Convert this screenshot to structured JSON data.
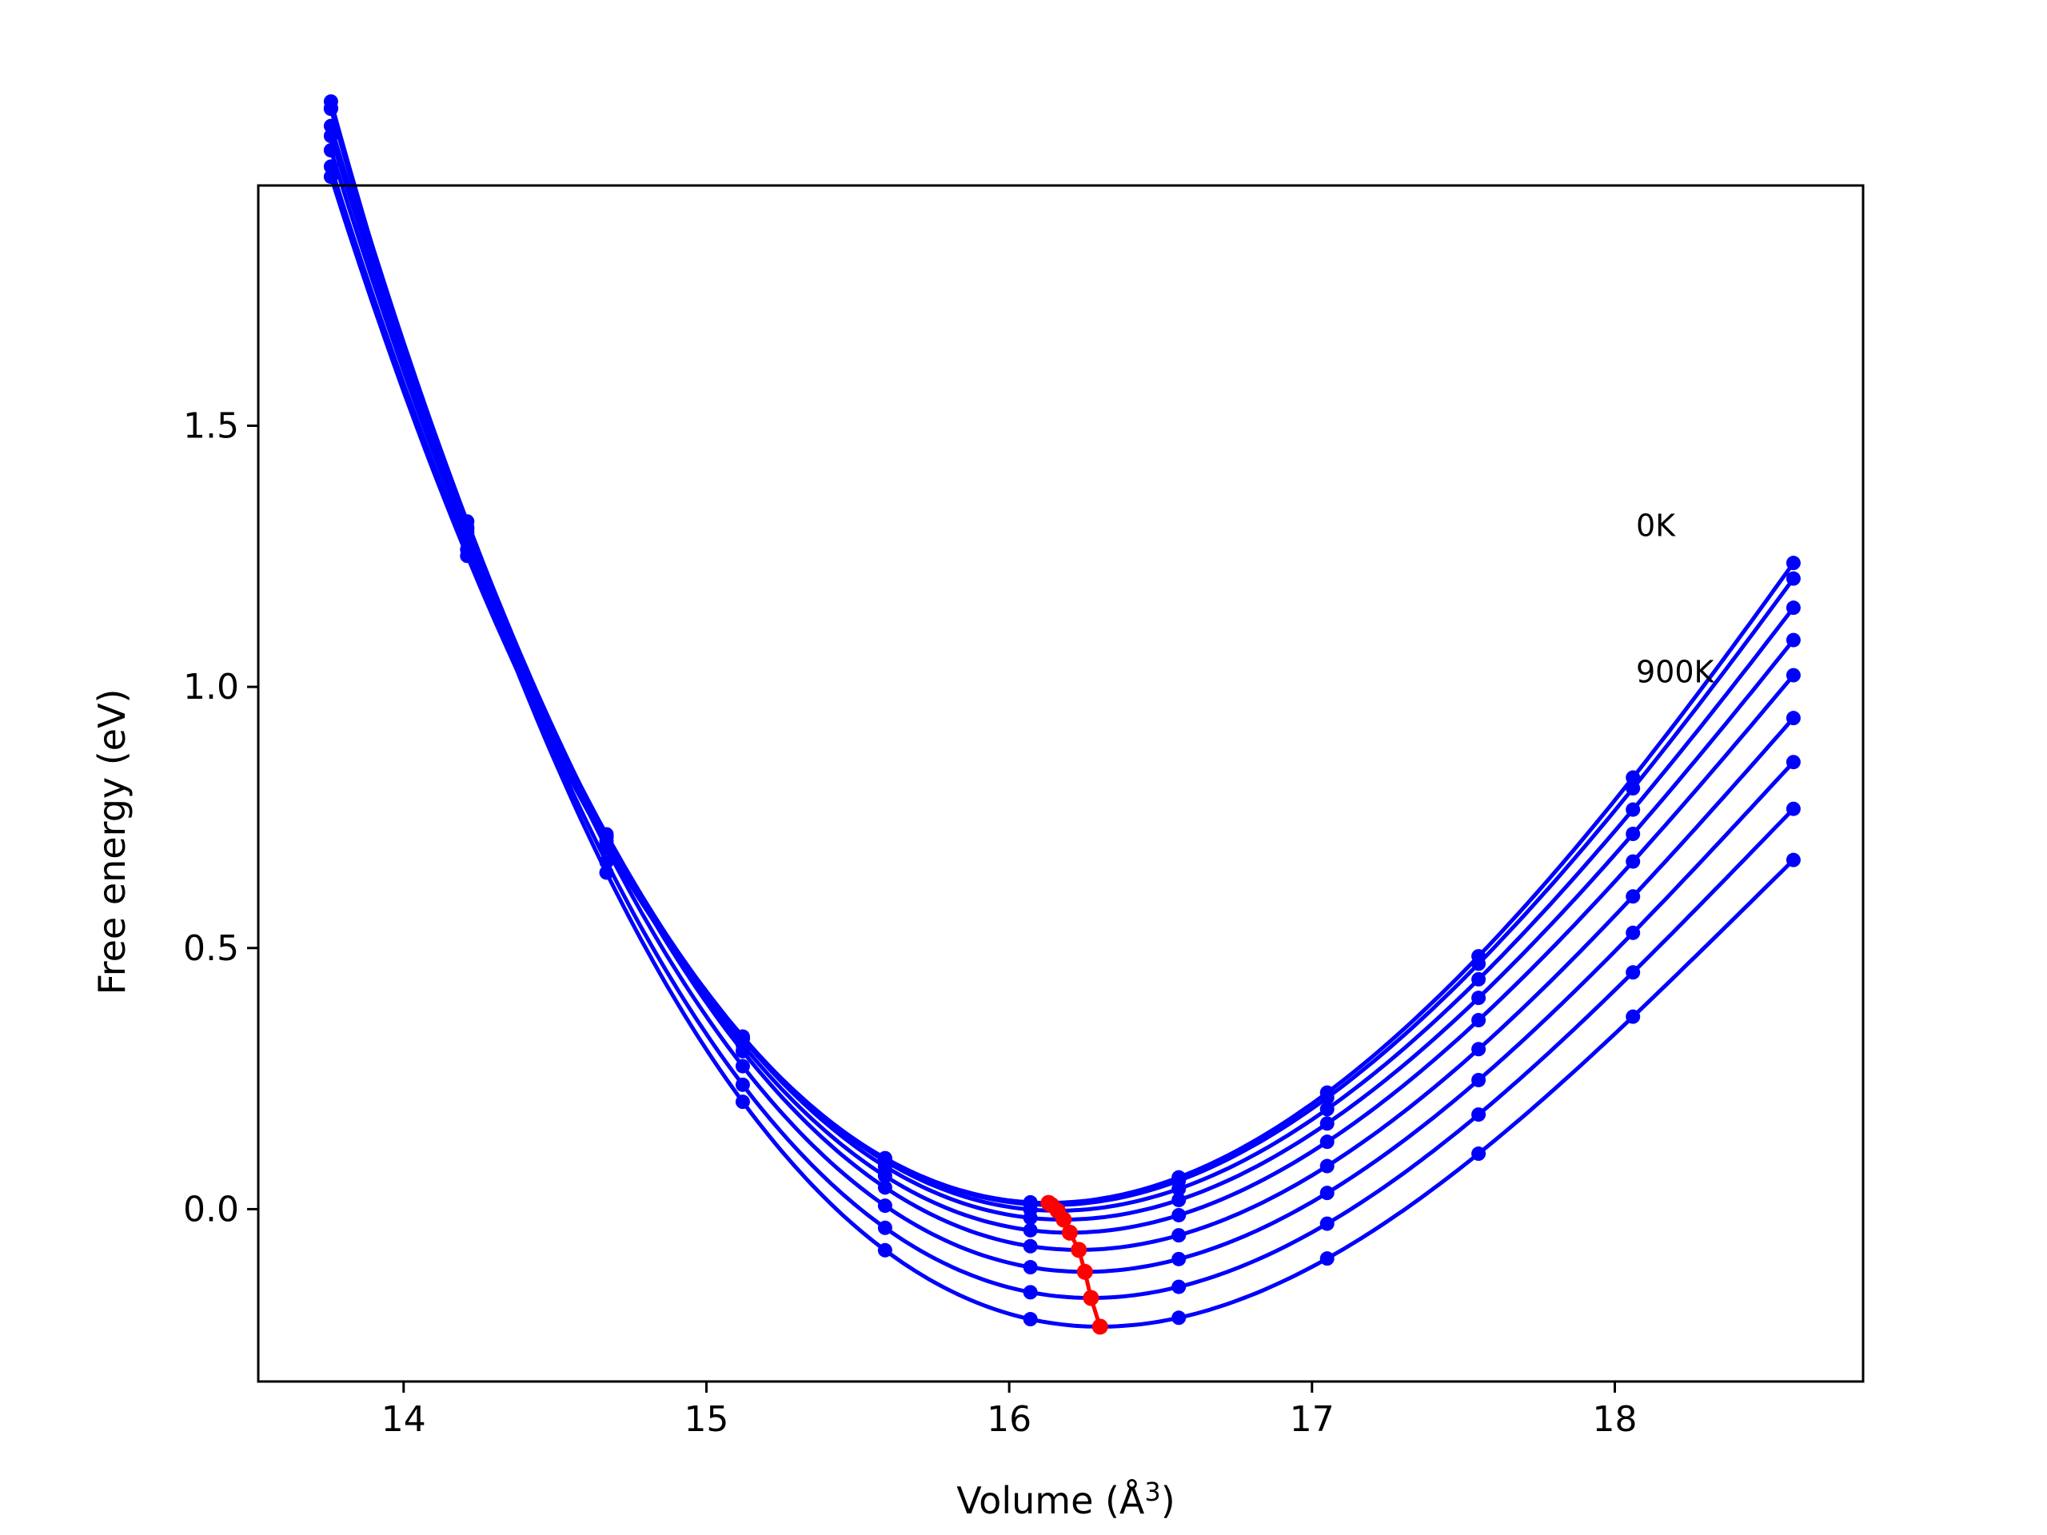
{
  "chart_data": {
    "type": "scatter",
    "title": "",
    "xlabel": "Volume (Å",
    "xlabel_sup": "3",
    "xlabel_close": ")",
    "ylabel": "Free energy (eV)",
    "xlim": [
      13.52,
      18.82
    ],
    "ylim": [
      -0.33,
      1.96
    ],
    "xticks": [
      14,
      15,
      16,
      17,
      18
    ],
    "xtick_labels": [
      "14",
      "15",
      "16",
      "17",
      "18"
    ],
    "yticks": [
      0.0,
      0.5,
      1.0,
      1.5
    ],
    "ytick_labels": [
      "0.0",
      "0.5",
      "1.0",
      "1.5"
    ],
    "grid": false,
    "legend": "none",
    "curve_color": "#0000ff",
    "min_color": "#ff0000",
    "annotations": [
      {
        "text": "0K",
        "x": 18.07,
        "y": 1.31
      },
      {
        "text": "900K",
        "x": 18.07,
        "y": 1.03
      }
    ],
    "volumes": [
      13.76,
      14.21,
      14.67,
      15.12,
      15.59,
      16.07,
      16.56,
      17.05,
      17.55,
      18.06
    ],
    "curve_range": [
      13.76,
      18.59
    ],
    "series": [
      {
        "min_volume": 16.13,
        "min_energy": 0.012,
        "curvature": 0.2775,
        "cubic": -0.0305
      },
      {
        "min_volume": 16.14,
        "min_energy": 0.008,
        "curvature": 0.2765,
        "cubic": -0.0313
      },
      {
        "min_volume": 16.16,
        "min_energy": -0.003,
        "curvature": 0.2745,
        "cubic": -0.0325
      },
      {
        "min_volume": 16.18,
        "min_energy": -0.02,
        "curvature": 0.2725,
        "cubic": -0.0338
      },
      {
        "min_volume": 16.2,
        "min_energy": -0.045,
        "curvature": 0.2705,
        "cubic": -0.035
      },
      {
        "min_volume": 16.23,
        "min_energy": -0.078,
        "curvature": 0.2685,
        "cubic": -0.0363
      },
      {
        "min_volume": 16.25,
        "min_energy": -0.12,
        "curvature": 0.266,
        "cubic": -0.0375
      },
      {
        "min_volume": 16.27,
        "min_energy": -0.17,
        "curvature": 0.264,
        "cubic": -0.0388
      },
      {
        "min_volume": 16.3,
        "min_energy": -0.225,
        "curvature": 0.262,
        "cubic": -0.04
      }
    ]
  }
}
